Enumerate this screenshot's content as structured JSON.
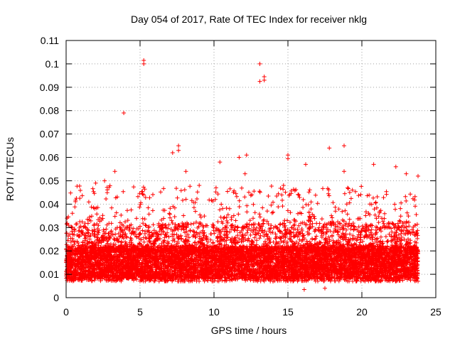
{
  "chart_data": {
    "type": "scatter",
    "title": "Day 054 of 2017, Rate Of TEC Index for receiver nklg",
    "xlabel": "GPS time / hours",
    "ylabel": "ROTI / TECUs",
    "xlim": [
      0,
      25
    ],
    "ylim": [
      0,
      0.11
    ],
    "x_ticks": [
      0,
      5,
      10,
      15,
      20,
      25
    ],
    "y_ticks": [
      0,
      0.01,
      0.02,
      0.03,
      0.04,
      0.05,
      0.06,
      0.07,
      0.08,
      0.09,
      0.1,
      0.11
    ],
    "x_tick_labels": [
      "0",
      "5",
      "10",
      "15",
      "20",
      "25"
    ],
    "y_tick_labels": [
      "0",
      "0.01",
      "0.02",
      "0.03",
      "0.04",
      "0.05",
      "0.06",
      "0.07",
      "0.08",
      "0.09",
      "0.1",
      "0.11"
    ],
    "grid": true,
    "marker": "+",
    "series": [
      {
        "name": "ROTI",
        "color": "#ff0000",
        "data_window_hours": [
          0,
          23.8
        ],
        "typical_range": [
          0.005,
          0.03
        ],
        "dense_band": [
          0.008,
          0.022
        ],
        "outliers": [
          {
            "x": 3.9,
            "y": 0.079
          },
          {
            "x": 5.25,
            "y": 0.1
          },
          {
            "x": 5.25,
            "y": 0.1015
          },
          {
            "x": 13.1,
            "y": 0.1
          },
          {
            "x": 13.1,
            "y": 0.0925
          },
          {
            "x": 13.4,
            "y": 0.093
          },
          {
            "x": 13.4,
            "y": 0.0945
          },
          {
            "x": 7.2,
            "y": 0.062
          },
          {
            "x": 7.6,
            "y": 0.065
          },
          {
            "x": 7.6,
            "y": 0.063
          },
          {
            "x": 18.8,
            "y": 0.065
          },
          {
            "x": 17.8,
            "y": 0.064
          },
          {
            "x": 15.0,
            "y": 0.061
          },
          {
            "x": 15.0,
            "y": 0.0595
          },
          {
            "x": 12.2,
            "y": 0.061
          },
          {
            "x": 11.7,
            "y": 0.06
          },
          {
            "x": 10.4,
            "y": 0.058
          },
          {
            "x": 16.2,
            "y": 0.057
          },
          {
            "x": 20.8,
            "y": 0.057
          },
          {
            "x": 22.3,
            "y": 0.056
          },
          {
            "x": 3.3,
            "y": 0.054
          },
          {
            "x": 8.1,
            "y": 0.054
          },
          {
            "x": 18.8,
            "y": 0.054
          },
          {
            "x": 23.0,
            "y": 0.053
          },
          {
            "x": 23.8,
            "y": 0.052
          },
          {
            "x": 12.1,
            "y": 0.053
          },
          {
            "x": 2.6,
            "y": 0.05
          },
          {
            "x": 2.0,
            "y": 0.049
          },
          {
            "x": 9.0,
            "y": 0.048
          },
          {
            "x": 14.7,
            "y": 0.048
          },
          {
            "x": 16.1,
            "y": 0.0035
          },
          {
            "x": 17.5,
            "y": 0.004
          }
        ]
      }
    ]
  }
}
